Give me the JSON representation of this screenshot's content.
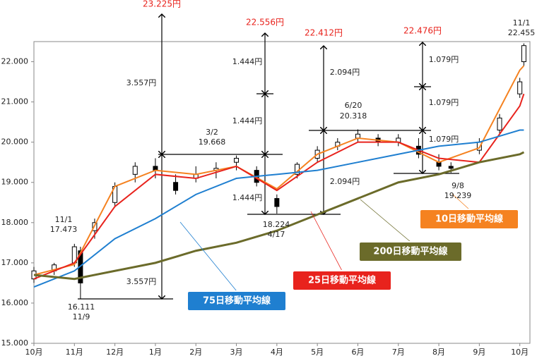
{
  "chart_data": {
    "type": "candlestick",
    "xlim": [
      0,
      12.25
    ],
    "ylim": [
      15000,
      22500
    ],
    "xticks": [
      {
        "value": 0,
        "label": "10月"
      },
      {
        "value": 1,
        "label": "11月"
      },
      {
        "value": 2,
        "label": "12月"
      },
      {
        "value": 3,
        "label": "1月"
      },
      {
        "value": 4,
        "label": "2月"
      },
      {
        "value": 5,
        "label": "3月"
      },
      {
        "value": 6,
        "label": "4月"
      },
      {
        "value": 7,
        "label": "5月"
      },
      {
        "value": 8,
        "label": "6月"
      },
      {
        "value": 9,
        "label": "7月"
      },
      {
        "value": 10,
        "label": "8月"
      },
      {
        "value": 11,
        "label": "9月"
      },
      {
        "value": 12,
        "label": "10月"
      }
    ],
    "yticks": [
      {
        "value": 15000,
        "label": "15.000"
      },
      {
        "value": 16000,
        "label": "16.000"
      },
      {
        "value": 17000,
        "label": "17.000"
      },
      {
        "value": 18000,
        "label": "18.000"
      },
      {
        "value": 19000,
        "label": "19.000"
      },
      {
        "value": 20000,
        "label": "20.000"
      },
      {
        "value": 21000,
        "label": "21.000"
      },
      {
        "value": 22000,
        "label": "22.000"
      }
    ],
    "candles": {
      "x": [
        0,
        0.5,
        1,
        1.15,
        1.5,
        2,
        2.5,
        3,
        3.5,
        4,
        4.5,
        5,
        5.5,
        6,
        6.5,
        7,
        7.5,
        8,
        8.5,
        9,
        9.5,
        10,
        10.3,
        11,
        11.5,
        12,
        12.1
      ],
      "open": [
        16600,
        16800,
        17000,
        17300,
        17800,
        18500,
        19200,
        19400,
        19000,
        19100,
        19300,
        19500,
        19300,
        18600,
        19200,
        19600,
        19900,
        20100,
        20100,
        20000,
        19900,
        19500,
        19400,
        19800,
        20300,
        21200,
        22000
      ],
      "high": [
        16900,
        17000,
        17473,
        17400,
        18100,
        19000,
        19500,
        19600,
        19200,
        19400,
        19500,
        19668,
        19400,
        18700,
        19500,
        19900,
        20100,
        20318,
        20200,
        20200,
        20100,
        19700,
        19500,
        20100,
        20700,
        21600,
        22455
      ],
      "low": [
        16500,
        16700,
        16900,
        16111,
        17600,
        18400,
        19000,
        19100,
        18700,
        19000,
        19100,
        19300,
        18900,
        18224,
        19100,
        19500,
        19800,
        20000,
        19900,
        19900,
        19600,
        19300,
        19239,
        19700,
        20200,
        21100,
        21900
      ],
      "close": [
        16800,
        16950,
        17400,
        16500,
        18000,
        18900,
        19400,
        19300,
        18800,
        19200,
        19350,
        19600,
        19000,
        18400,
        19450,
        19800,
        20000,
        20200,
        20000,
        20100,
        19700,
        19400,
        19350,
        20000,
        20600,
        21500,
        22400
      ]
    },
    "series": [
      {
        "name": "10日移動平均線",
        "color": "#f58220",
        "x": [
          0,
          1,
          2,
          3,
          4,
          5,
          6,
          7,
          8,
          9,
          10,
          11,
          12,
          12.1
        ],
        "values": [
          16700,
          16960,
          18900,
          19300,
          19200,
          19400,
          18840,
          19700,
          20100,
          20000,
          19500,
          19860,
          21790,
          21900
        ]
      },
      {
        "name": "25日移動平均線",
        "color": "#e8231d",
        "x": [
          0,
          1,
          2,
          3,
          4,
          5,
          6,
          7,
          8,
          9,
          10,
          11,
          12,
          12.1
        ],
        "values": [
          16600,
          17000,
          18400,
          19200,
          19100,
          19400,
          18800,
          19500,
          20000,
          20000,
          19600,
          19500,
          20900,
          21200
        ]
      },
      {
        "name": "75日移動平均線",
        "color": "#1f7fd0",
        "x": [
          0,
          1,
          2,
          3,
          4,
          5,
          6,
          7,
          8,
          9,
          10,
          11,
          12,
          12.1
        ],
        "values": [
          16400,
          16800,
          17600,
          18100,
          18700,
          19100,
          19200,
          19300,
          19500,
          19700,
          19900,
          20000,
          20300,
          20300
        ]
      },
      {
        "name": "200日移動平均線",
        "color": "#6b6b2a",
        "x": [
          0,
          1,
          2,
          3,
          4,
          5,
          6,
          7,
          8,
          9,
          10,
          11,
          12,
          12.1
        ],
        "values": [
          16700,
          16600,
          16800,
          17000,
          17300,
          17500,
          17800,
          18200,
          18600,
          19000,
          19200,
          19500,
          19700,
          19750
        ]
      }
    ],
    "annotations": [
      "23.225円",
      "22.556円",
      "22.412円",
      "22.476円",
      "3.557円",
      "3.557円",
      "1.444円",
      "1.444円",
      "1.444円",
      "2.094円",
      "2.094円",
      "1.079円",
      "1.079円",
      "1.079円",
      "11/1",
      "17.473",
      "16.111",
      "11/9",
      "3/2",
      "19.668",
      "18.224",
      "4/17",
      "6/20",
      "20.318",
      "9/8",
      "19.239",
      "11/1",
      "22.455"
    ]
  }
}
